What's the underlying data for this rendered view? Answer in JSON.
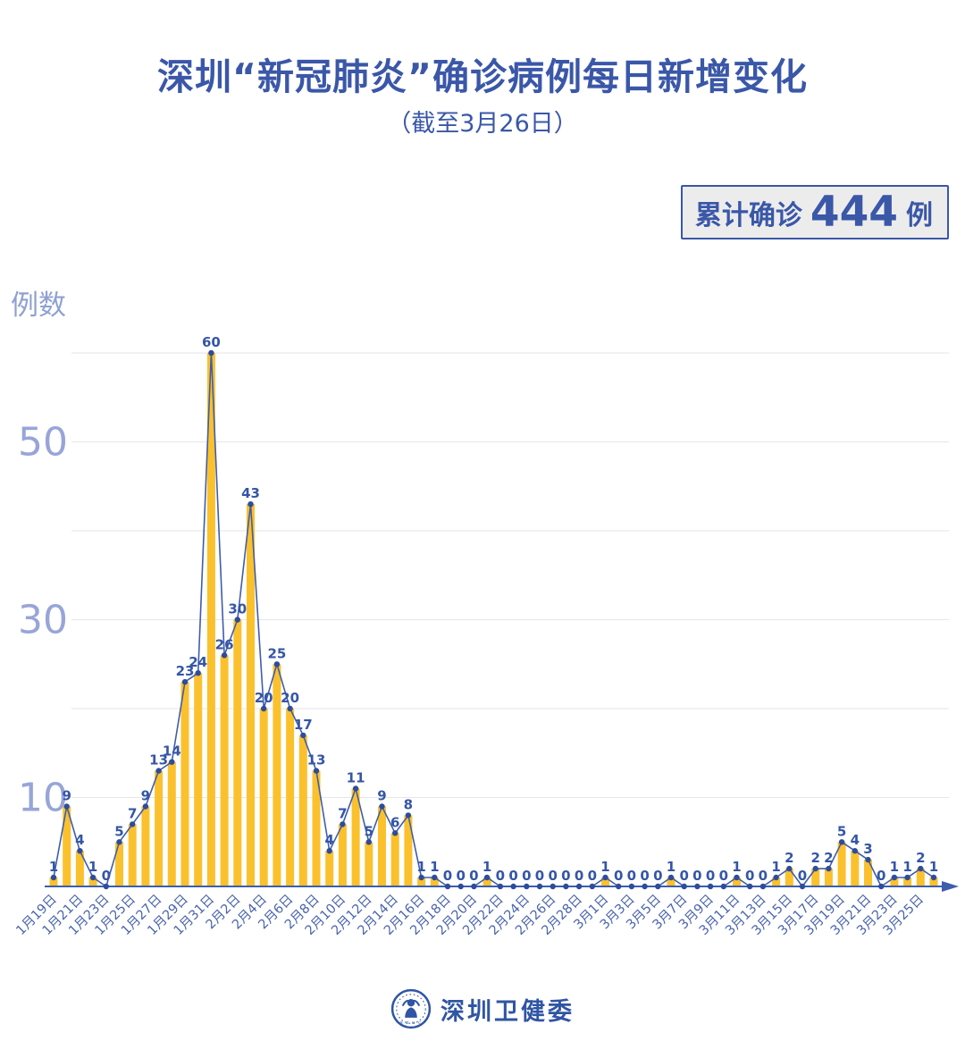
{
  "badge": {
    "prefix": "累计确诊",
    "value": "444",
    "suffix": "例"
  },
  "footer": {
    "org_name": "深圳卫健委",
    "logo": "szhc-emblem"
  },
  "colors": {
    "title_blue": "#3A57A8",
    "bar_yellow": "#FBC12D",
    "line_blue": "#3E5DAD",
    "point_blue": "#2E4C9C",
    "value_label_blue": "#3556A6",
    "x_label_blue": "#4A64AE",
    "y_label_periwinkle": "#97A5D8",
    "gridline_gray": "#E6E6E9",
    "badge_bg": "#ECECEC"
  },
  "chart_data": {
    "type": "bar+line",
    "title": "深圳“新冠肺炎”确诊病例每日新增变化",
    "subtitle": "（截至3月26日）",
    "ylabel": "例数",
    "xlabel": "",
    "ylim": [
      0,
      62
    ],
    "yticks_labeled": [
      10,
      30,
      50
    ],
    "gridlines": [
      10,
      20,
      30,
      40,
      50,
      60
    ],
    "x_label_every": 2,
    "legend_position": "none",
    "annotation": "累计确诊 444 例",
    "categories": [
      "1月19日",
      "1月20日",
      "1月21日",
      "1月22日",
      "1月23日",
      "1月24日",
      "1月25日",
      "1月26日",
      "1月27日",
      "1月28日",
      "1月29日",
      "1月30日",
      "1月31日",
      "2月1日",
      "2月2日",
      "2月3日",
      "2月4日",
      "2月5日",
      "2月6日",
      "2月7日",
      "2月8日",
      "2月9日",
      "2月10日",
      "2月11日",
      "2月12日",
      "2月13日",
      "2月14日",
      "2月15日",
      "2月16日",
      "2月17日",
      "2月18日",
      "2月19日",
      "2月20日",
      "2月21日",
      "2月22日",
      "2月23日",
      "2月24日",
      "2月25日",
      "2月26日",
      "2月27日",
      "2月28日",
      "2月29日",
      "3月1日",
      "3月2日",
      "3月3日",
      "3月4日",
      "3月5日",
      "3月6日",
      "3月7日",
      "3月8日",
      "3月9日",
      "3月10日",
      "3月11日",
      "3月12日",
      "3月13日",
      "3月14日",
      "3月15日",
      "3月16日",
      "3月17日",
      "3月18日",
      "3月19日",
      "3月20日",
      "3月21日",
      "3月22日",
      "3月23日",
      "3月24日",
      "3月25日",
      "3月26日"
    ],
    "values": [
      1,
      9,
      4,
      1,
      0,
      5,
      7,
      9,
      13,
      14,
      23,
      24,
      60,
      26,
      30,
      43,
      20,
      25,
      20,
      17,
      13,
      4,
      7,
      11,
      5,
      9,
      6,
      8,
      1,
      1,
      0,
      0,
      0,
      1,
      0,
      0,
      0,
      0,
      0,
      0,
      0,
      0,
      1,
      0,
      0,
      0,
      0,
      1,
      0,
      0,
      0,
      0,
      1,
      0,
      0,
      1,
      2,
      0,
      2,
      2,
      5,
      4,
      3,
      0,
      1,
      1,
      2,
      1
    ]
  }
}
